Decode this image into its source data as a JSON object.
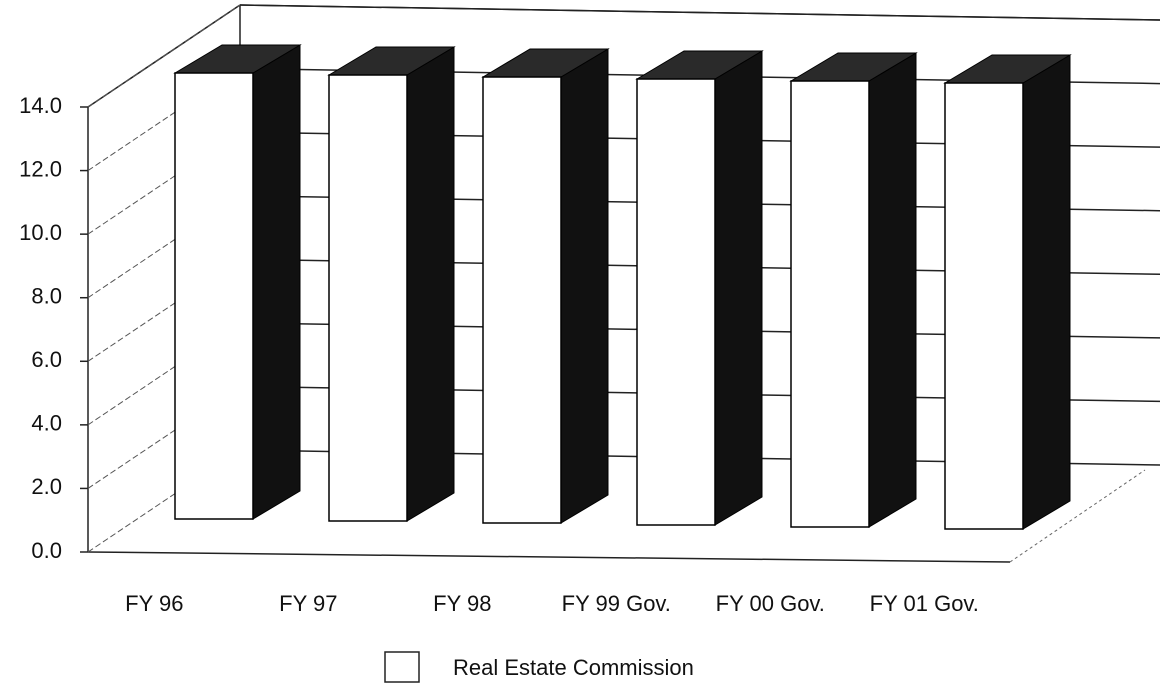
{
  "chart_data": {
    "type": "bar",
    "categories": [
      "FY 96",
      "FY 97",
      "FY 98",
      "FY 99 Gov.",
      "FY 00 Gov.",
      "FY 01 Gov."
    ],
    "series": [
      {
        "name": "Real Estate Commission",
        "color": "#ffffff",
        "values": [
          14.0,
          14.0,
          14.0,
          14.0,
          14.0,
          14.0
        ]
      }
    ],
    "ylim": [
      0,
      14
    ],
    "yticks": [
      {
        "value": 0,
        "label": "0.0"
      },
      {
        "value": 2,
        "label": "2.0"
      },
      {
        "value": 4,
        "label": "4.0"
      },
      {
        "value": 6,
        "label": "6.0"
      },
      {
        "value": 8,
        "label": "8.0"
      },
      {
        "value": 10,
        "label": "10.0"
      },
      {
        "value": 12,
        "label": "12.0"
      },
      {
        "value": 14,
        "label": "14.0"
      }
    ],
    "grid": true
  }
}
